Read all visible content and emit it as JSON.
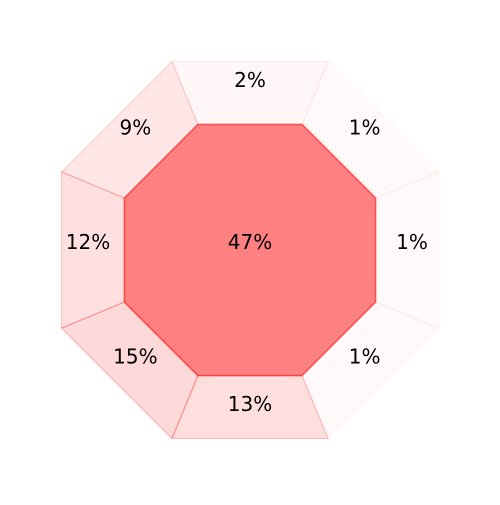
{
  "chart_data": {
    "type": "octagon-treemap",
    "center": {
      "label": "47%",
      "value": 47,
      "color": "#ff8080"
    },
    "segments": [
      {
        "position": "top",
        "label": "2%",
        "value": 2
      },
      {
        "position": "top-right",
        "label": "1%",
        "value": 1
      },
      {
        "position": "right",
        "label": "1%",
        "value": 1
      },
      {
        "position": "bottom-right",
        "label": "1%",
        "value": 1
      },
      {
        "position": "bottom",
        "label": "13%",
        "value": 13
      },
      {
        "position": "bottom-left",
        "label": "15%",
        "value": 15
      },
      {
        "position": "left",
        "label": "12%",
        "value": 12
      },
      {
        "position": "top-left",
        "label": "9%",
        "value": 9
      }
    ],
    "segment_color": "#ff8080",
    "edge_color": "#ff0000"
  }
}
